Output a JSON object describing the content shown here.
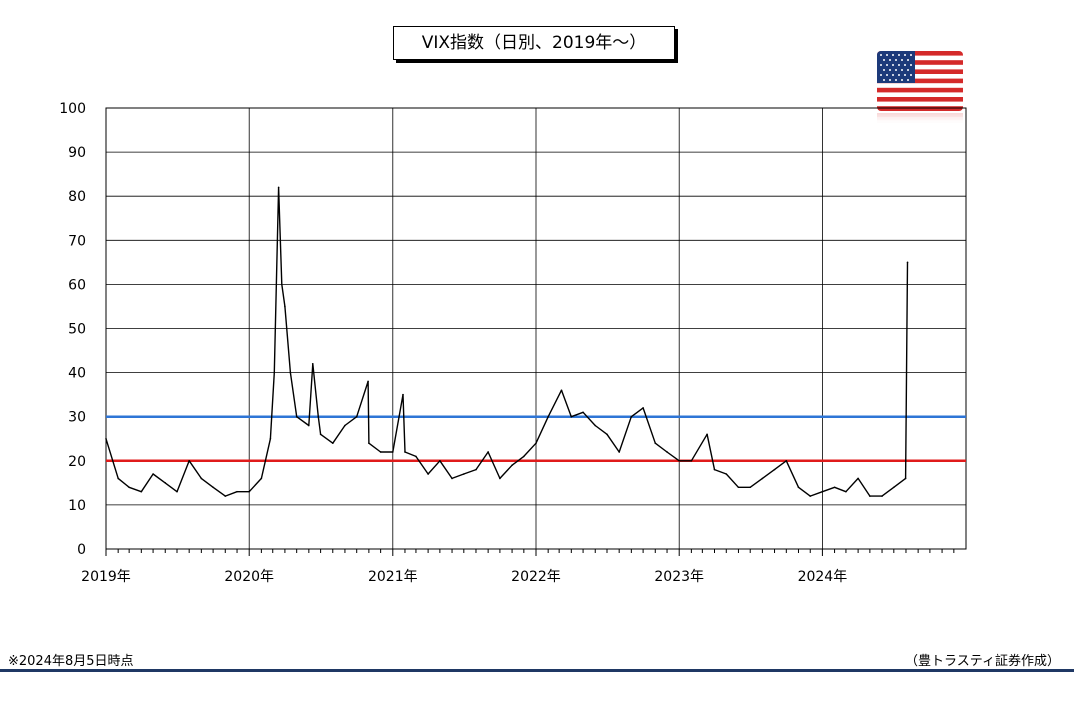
{
  "chart_data": {
    "type": "line",
    "title": "VIX指数（日別、2019年～）",
    "ylim": [
      0,
      100
    ],
    "yticks": [
      0,
      10,
      20,
      30,
      40,
      50,
      60,
      70,
      80,
      90,
      100
    ],
    "xlim": [
      "2019-01",
      "2025-01"
    ],
    "xticks": [
      "2019年",
      "2020年",
      "2021年",
      "2022年",
      "2023年",
      "2024年"
    ],
    "grid": true,
    "colors": {
      "series": "#000000",
      "line_30": "#2e75d6",
      "line_20": "#e01b1b"
    },
    "reference_lines": [
      {
        "value": 30,
        "color": "#2e75d6"
      },
      {
        "value": 20,
        "color": "#e01b1b"
      }
    ],
    "series": [
      {
        "x": [
          "2019-01",
          "2019-02",
          "2019-03",
          "2019-04",
          "2019-05",
          "2019-06",
          "2019-07",
          "2019-08",
          "2019-09",
          "2019-10",
          "2019-11",
          "2019-12",
          "2020-01",
          "2020-02",
          "2020-02-24",
          "2020-03-05",
          "2020-03-16",
          "2020-03-24",
          "2020-04-01",
          "2020-04-15",
          "2020-05",
          "2020-06-01",
          "2020-06-11",
          "2020-06-25",
          "2020-07",
          "2020-08",
          "2020-09",
          "2020-10",
          "2020-10-30",
          "2020-11",
          "2020-12",
          "2021-01",
          "2021-01-27",
          "2021-02",
          "2021-03",
          "2021-04",
          "2021-05",
          "2021-06",
          "2021-07",
          "2021-08",
          "2021-09",
          "2021-10",
          "2021-11",
          "2021-12",
          "2022-01",
          "2022-02",
          "2022-03-07",
          "2022-04",
          "2022-05",
          "2022-06",
          "2022-07",
          "2022-08",
          "2022-09",
          "2022-10",
          "2022-11",
          "2022-12",
          "2023-01",
          "2023-02",
          "2023-03-13",
          "2023-04",
          "2023-05",
          "2023-06",
          "2023-07",
          "2023-08",
          "2023-09",
          "2023-10",
          "2023-11",
          "2023-12",
          "2024-01",
          "2024-02",
          "2024-03",
          "2024-04",
          "2024-05",
          "2024-06",
          "2024-07",
          "2024-07-31",
          "2024-08-05"
        ],
        "values": [
          25,
          16,
          14,
          13,
          17,
          15,
          13,
          20,
          16,
          14,
          12,
          13,
          13,
          16,
          25,
          40,
          82,
          60,
          55,
          40,
          30,
          28,
          42,
          30,
          26,
          24,
          28,
          30,
          38,
          24,
          22,
          22,
          35,
          22,
          21,
          17,
          20,
          16,
          17,
          18,
          22,
          16,
          19,
          21,
          24,
          30,
          36,
          30,
          31,
          28,
          26,
          22,
          30,
          32,
          24,
          22,
          20,
          20,
          26,
          18,
          17,
          14,
          14,
          16,
          18,
          20,
          14,
          12,
          13,
          14,
          13,
          16,
          12,
          12,
          14,
          16,
          65
        ]
      }
    ],
    "footnote": "※2024年8月5日時点",
    "credit": "（豊トラスティ証券作成）"
  },
  "flag_icon": "us-flag-icon"
}
